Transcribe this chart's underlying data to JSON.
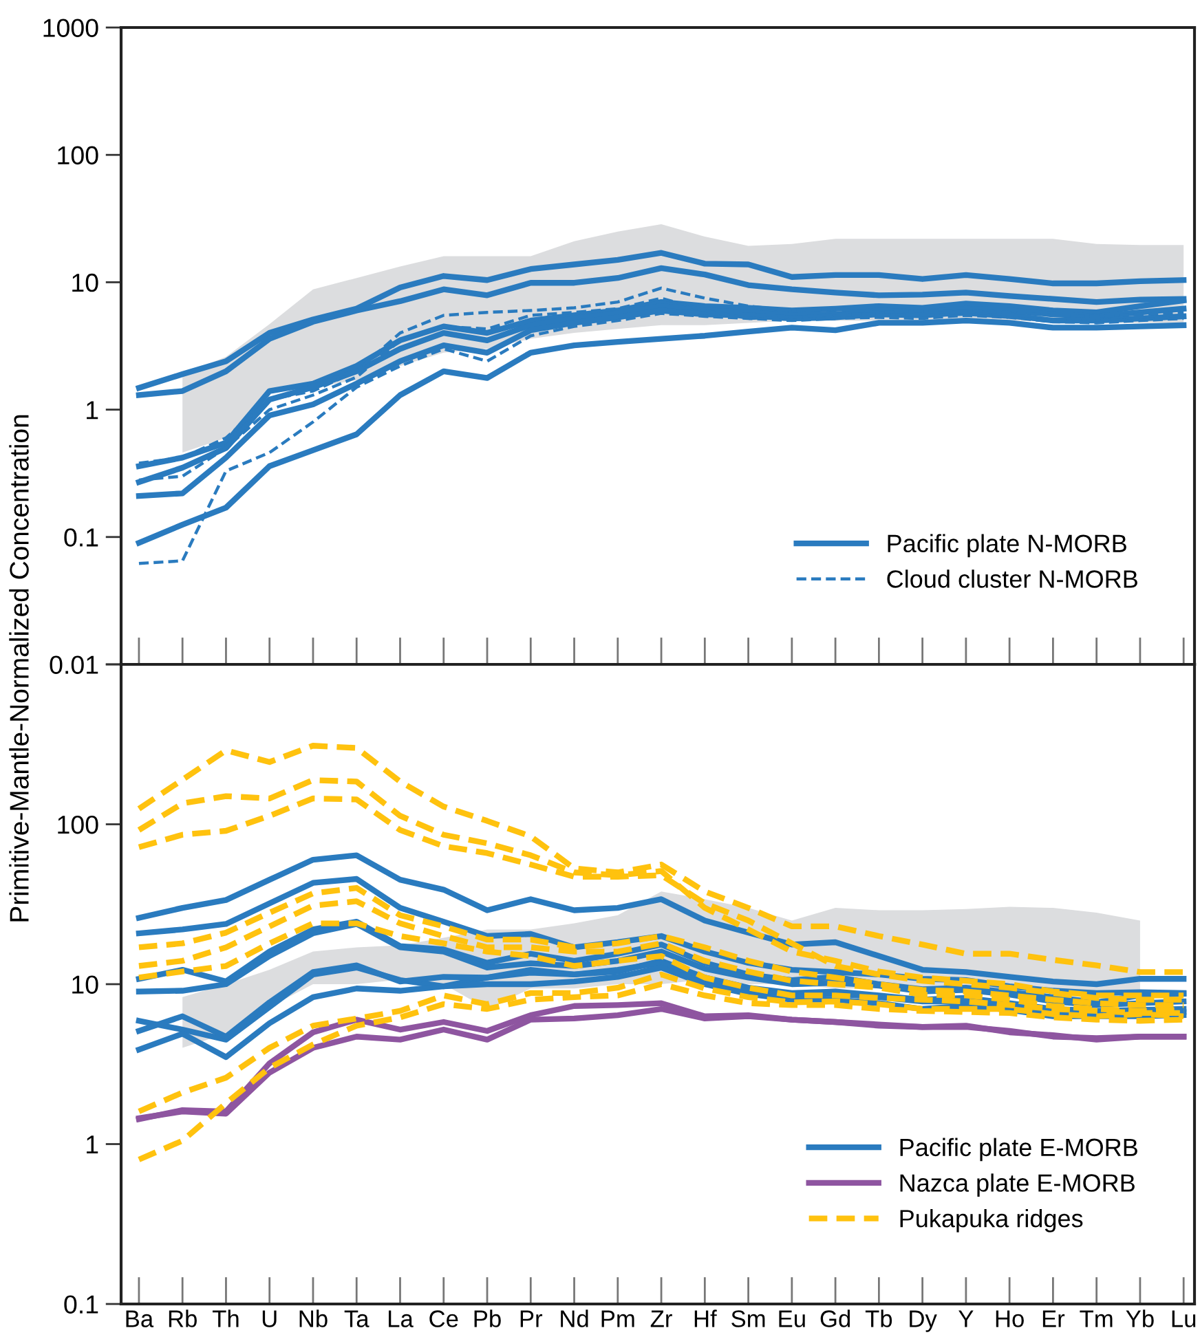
{
  "chart_data": [
    {
      "type": "line",
      "ylabel": "Primitive-Mantle-Normalized Concentration",
      "log": "y",
      "ylim": [
        0.01,
        1000
      ],
      "yticks": [
        0.01,
        0.1,
        1,
        10,
        100,
        1000
      ],
      "tick_labels": "y",
      "legend": "bottom right",
      "grid": false,
      "categories": [
        null,
        null,
        null,
        null,
        null,
        null,
        null,
        null,
        null,
        null,
        null,
        null,
        null,
        null,
        null,
        null,
        null,
        null,
        null,
        null,
        null,
        null,
        null,
        null,
        null
      ],
      "series": [
        {
          "color": "#dcdddf",
          "values": [
            null,
            null,
            null,
            null,
            null,
            null,
            null,
            null,
            null,
            null,
            null,
            null,
            null,
            null,
            null,
            null,
            null,
            null,
            null,
            null,
            null,
            null,
            null,
            null,
            null
          ],
          "lower": [
            null,
            0.46,
            0.6,
            1.36,
            1.5,
            1.7,
            2.2,
            2.8,
            3.0,
            3.6,
            4.0,
            4.3,
            4.6,
            4.6,
            4.8,
            5.0,
            5.0,
            5.0,
            5.0,
            5.0,
            5.0,
            4.9,
            4.8,
            4.8,
            4.8
          ],
          "upper": [
            null,
            1.9,
            2.6,
            4.7,
            8.8,
            10.8,
            13.3,
            16,
            16,
            16,
            21,
            25,
            28.6,
            22.8,
            19.3,
            20,
            21.9,
            21.9,
            21.9,
            21.9,
            21.9,
            21.9,
            20,
            19.6,
            19.6
          ]
        },
        {
          "name": "Pacific plate N-MORB",
          "color": "#2a7bbf",
          "line_style": "solid",
          "values": [
            1.48,
            1.9,
            2.4,
            4.0,
            5.1,
            6.2,
            9.1,
            11.2,
            10.4,
            12.7,
            13.8,
            15,
            17,
            14,
            13.8,
            11,
            11.4,
            11.4,
            10.6,
            11.4,
            10.6,
            9.8,
            9.8,
            10.2,
            10.4
          ]
        },
        {
          "color": "#2a7bbf",
          "line_style": "solid",
          "values": [
            1.3,
            1.4,
            2.0,
            3.6,
            4.9,
            6.0,
            7.1,
            8.8,
            7.9,
            9.9,
            9.9,
            10.8,
            12.9,
            11.5,
            9.5,
            8.8,
            8.3,
            7.9,
            8.0,
            8.3,
            7.8,
            7.4,
            7.0,
            7.3,
            7.4
          ]
        },
        {
          "color": "#2a7bbf",
          "line_style": "solid",
          "values": [
            0.36,
            0.42,
            0.55,
            1.4,
            1.6,
            2.2,
            3.5,
            4.5,
            4.0,
            5.0,
            5.5,
            6.0,
            7.0,
            6.5,
            6.3,
            6.0,
            6.2,
            6.5,
            6.3,
            6.8,
            6.5,
            6.0,
            5.8,
            6.5,
            7.2
          ]
        },
        {
          "color": "#2a7bbf",
          "line_style": "solid",
          "values": [
            0.27,
            0.35,
            0.5,
            1.2,
            1.5,
            2.0,
            3.0,
            4.0,
            3.5,
            4.6,
            5.2,
            5.7,
            6.5,
            6.0,
            5.8,
            5.5,
            5.6,
            6.0,
            5.8,
            6.2,
            6.0,
            5.6,
            5.4,
            5.8,
            6.2
          ]
        },
        {
          "color": "#2a7bbf",
          "line_style": "solid",
          "values": [
            0.21,
            0.22,
            0.42,
            0.9,
            1.1,
            1.6,
            2.4,
            3.2,
            2.8,
            4.2,
            4.8,
            5.3,
            6.0,
            5.6,
            5.5,
            5.2,
            5.3,
            5.6,
            5.5,
            5.8,
            5.5,
            5.0,
            5.0,
            5.2,
            5.4
          ]
        },
        {
          "color": "#2a7bbf",
          "line_style": "solid",
          "values": [
            0.09,
            0.125,
            0.17,
            0.36,
            0.48,
            0.64,
            1.3,
            2.0,
            1.77,
            2.8,
            3.2,
            3.4,
            3.6,
            3.8,
            4.1,
            4.4,
            4.2,
            4.8,
            4.8,
            5.0,
            4.8,
            4.4,
            4.4,
            4.5,
            4.6
          ]
        },
        {
          "name": "Cloud cluster N-MORB",
          "color": "#2a7bbf",
          "line_style": "dashed",
          "values": [
            0.38,
            0.42,
            0.6,
            1.2,
            1.4,
            2.0,
            4.0,
            5.5,
            5.8,
            6.0,
            6.3,
            7.0,
            9.0,
            7.5,
            6.5,
            6.0,
            6.2,
            5.8,
            6.0,
            6.0,
            5.8,
            5.5,
            5.4,
            5.6,
            5.8
          ]
        },
        {
          "color": "#2a7bbf",
          "line_style": "dashed",
          "values": [
            0.28,
            0.3,
            0.5,
            1.0,
            1.3,
            1.8,
            3.5,
            4.5,
            4.3,
            5.5,
            5.8,
            6.2,
            7.5,
            6.0,
            5.2,
            5.3,
            5.6,
            5.6,
            5.5,
            5.6,
            5.3,
            5.0,
            5.0,
            5.1,
            5.3
          ]
        },
        {
          "color": "#2a7bbf",
          "line_style": "dashed",
          "values": [
            0.062,
            0.065,
            0.33,
            0.46,
            0.8,
            1.5,
            2.2,
            3.0,
            2.4,
            3.8,
            4.5,
            5.0,
            5.7,
            5.4,
            5.2,
            5.0,
            5.2,
            5.3,
            5.2,
            5.5,
            5.3,
            4.9,
            4.8,
            5.0,
            5.2
          ]
        }
      ]
    },
    {
      "type": "line",
      "log": "y",
      "ylim": [
        0.1,
        1000
      ],
      "yticks": [
        0.1,
        1,
        10,
        100,
        {
          "value": 1000,
          "label": null
        }
      ],
      "legend": "bottom right",
      "grid": false,
      "categories": [
        "Ba",
        "Rb",
        "Th",
        "U",
        "Nb",
        "Ta",
        "La",
        "Ce",
        "Pb",
        "Pr",
        "Nd",
        "Pm",
        "Zr",
        "Hf",
        "Sm",
        "Eu",
        "Gd",
        "Tb",
        "Dy",
        "Y",
        "Ho",
        "Er",
        "Tm",
        "Yb",
        "Lu"
      ],
      "series": [
        {
          "color": "#dcdddf",
          "values": [
            null,
            null,
            null,
            null,
            null,
            null,
            null,
            null,
            null,
            null,
            null,
            null,
            null,
            null,
            null,
            null,
            null,
            null,
            null,
            null,
            null,
            null,
            null,
            null,
            null
          ],
          "lower": [
            null,
            4.0,
            4.9,
            7.2,
            10,
            10,
            10.7,
            10,
            7.0,
            9.4,
            9.4,
            10,
            10,
            10.7,
            10,
            10,
            9.4,
            9.4,
            9.4,
            9.7,
            9.4,
            9.1,
            9.1,
            9.1,
            null
          ],
          "upper": [
            null,
            8.3,
            10,
            12.3,
            16,
            17,
            17.5,
            19.5,
            22,
            22,
            24,
            27,
            38,
            34,
            30,
            25,
            30,
            29,
            29,
            29.5,
            30.5,
            30,
            28,
            25,
            null
          ]
        },
        {
          "name": "Pacific plate E-MORB",
          "color": "#2a7bbf",
          "line_style": "solid",
          "values": [
            26,
            30,
            33.6,
            45,
            60,
            64,
            45,
            39,
            29,
            34,
            29,
            30,
            34,
            25,
            21,
            17.7,
            18.3,
            15,
            12.3,
            11.9,
            11.1,
            10.4,
            10,
            10.8,
            10.8
          ]
        },
        {
          "color": "#2a7bbf",
          "line_style": "solid",
          "values": [
            20.8,
            22,
            23.8,
            32,
            43,
            45.5,
            30,
            24.6,
            20,
            20.6,
            17,
            18.3,
            20,
            16,
            13.6,
            12.3,
            11.9,
            11.5,
            10.8,
            10.6,
            9.7,
            9.1,
            8.8,
            8.9,
            8.8
          ]
        },
        {
          "color": "#2a7bbf",
          "line_style": "solid",
          "values": [
            10.8,
            12.3,
            10.4,
            16,
            22,
            24.6,
            17.3,
            16.5,
            13.6,
            15.5,
            14,
            15.5,
            17.7,
            13.6,
            11.5,
            10.6,
            11.1,
            10,
            9.3,
            9.5,
            8.9,
            8.3,
            7.7,
            8.5,
            8.7
          ]
        },
        {
          "color": "#2a7bbf",
          "line_style": "solid",
          "values": [
            9.0,
            9.1,
            10,
            15,
            20.8,
            23.8,
            17,
            16,
            12.7,
            13.5,
            13,
            14,
            16,
            12.5,
            11,
            10,
            10.2,
            9.8,
            9.0,
            9.2,
            8.6,
            7.8,
            7.4,
            7.6,
            7.8
          ]
        },
        {
          "color": "#2a7bbf",
          "line_style": "solid",
          "values": [
            5.9,
            5.2,
            4.5,
            7.2,
            11.5,
            12.7,
            10.6,
            9.7,
            11,
            11.8,
            11.5,
            12,
            14,
            11,
            9.5,
            8.8,
            9.0,
            8.5,
            8.0,
            8.2,
            7.6,
            7.0,
            6.8,
            6.9,
            7.0
          ]
        },
        {
          "color": "#2a7bbf",
          "line_style": "solid",
          "values": [
            5.1,
            6.3,
            4.7,
            7.7,
            11.9,
            13.1,
            10.4,
            11.1,
            11,
            12.3,
            11.5,
            12.3,
            13.6,
            10.5,
            9.0,
            8.5,
            8.7,
            8.3,
            7.8,
            7.8,
            7.3,
            6.6,
            6.6,
            6.6,
            6.7
          ]
        },
        {
          "color": "#2a7bbf",
          "line_style": "solid",
          "values": [
            3.9,
            4.9,
            3.5,
            5.7,
            8.3,
            9.4,
            9.1,
            9.7,
            10,
            10,
            10.4,
            11.1,
            12.7,
            10,
            8.7,
            8.0,
            8.0,
            7.6,
            7.0,
            7.3,
            6.9,
            6.3,
            6.3,
            6.3,
            6.4
          ]
        },
        {
          "name": "Nazca plate E-MORB",
          "color": "#8e55a0",
          "line_style": "solid",
          "values": [
            1.43,
            1.63,
            1.6,
            3.2,
            5.0,
            6.0,
            5.2,
            5.8,
            5.1,
            6.4,
            7.3,
            7.4,
            7.6,
            6.3,
            6.4,
            6.0,
            5.8,
            5.5,
            5.4,
            5.5,
            5.0,
            4.8,
            4.5,
            4.7,
            4.7
          ]
        },
        {
          "color": "#8e55a0",
          "line_style": "solid",
          "values": [
            1.45,
            1.6,
            1.55,
            2.8,
            4.0,
            4.7,
            4.5,
            5.2,
            4.5,
            6.0,
            6.1,
            6.4,
            7.0,
            6.1,
            6.3,
            6.0,
            5.8,
            5.6,
            5.4,
            5.4,
            5.1,
            4.7,
            4.6,
            4.7,
            4.7
          ]
        },
        {
          "name": "Pukapuka ridges",
          "color": "#ffc20e",
          "line_style": "dashed",
          "values": [
            125,
            190,
            290,
            245,
            310,
            300,
            185,
            129,
            105,
            84,
            53,
            50,
            56,
            38,
            30,
            23,
            23,
            20,
            17.7,
            15.5,
            15.5,
            14.2,
            13.1,
            11.9,
            11.9
          ]
        },
        {
          "color": "#ffc20e",
          "line_style": "dashed",
          "values": [
            92,
            135,
            150,
            145,
            189,
            185,
            113,
            86,
            76,
            64,
            50,
            48,
            51,
            30,
            22,
            16,
            14,
            12,
            11,
            10.5,
            10,
            9.0,
            8.5,
            8.5,
            8.5
          ]
        },
        {
          "color": "#ffc20e",
          "line_style": "dashed",
          "values": [
            72,
            86,
            91,
            113,
            145,
            143,
            92,
            73,
            66,
            56,
            47,
            47,
            48,
            32,
            25,
            18,
            13,
            11.5,
            10.5,
            10,
            9.5,
            8.8,
            8.2,
            8.0,
            8.0
          ]
        },
        {
          "color": "#ffc20e",
          "line_style": "dashed",
          "values": [
            17,
            18,
            21,
            28,
            37,
            40,
            27,
            23,
            19,
            19,
            17,
            18,
            20,
            17,
            14,
            12,
            11,
            10,
            9.2,
            9.0,
            8.5,
            8.0,
            7.6,
            7.4,
            7.4
          ]
        },
        {
          "color": "#ffc20e",
          "line_style": "dashed",
          "values": [
            13,
            14,
            17,
            23,
            31,
            33,
            24,
            20,
            17,
            17,
            16,
            16,
            18,
            14,
            12,
            10.5,
            10,
            9.5,
            8.6,
            8.5,
            8.0,
            7.3,
            7.0,
            6.8,
            6.9
          ]
        },
        {
          "color": "#ffc20e",
          "line_style": "dashed",
          "values": [
            11,
            12,
            13,
            18,
            24,
            24,
            20,
            18,
            16,
            15,
            13,
            14,
            15,
            11,
            9.5,
            8.5,
            8.5,
            8.2,
            8.0,
            7.8,
            7.4,
            7.0,
            6.8,
            6.6,
            6.6
          ]
        },
        {
          "color": "#ffc20e",
          "line_style": "dashed",
          "values": [
            1.6,
            2.1,
            2.6,
            4.0,
            5.5,
            6.1,
            6.8,
            8.5,
            7.5,
            8.8,
            8.8,
            9.5,
            11.5,
            9.4,
            8.3,
            7.7,
            7.8,
            7.5,
            7.0,
            7.0,
            7.0,
            6.5,
            6.3,
            6.5,
            6.3
          ]
        },
        {
          "color": "#ffc20e",
          "line_style": "dashed",
          "values": [
            0.8,
            1.05,
            1.8,
            3.0,
            4.2,
            5.5,
            6.2,
            7.5,
            7.0,
            8.0,
            8.3,
            8.5,
            10,
            8.5,
            7.6,
            7.4,
            7.4,
            7.0,
            6.8,
            6.7,
            6.6,
            6.2,
            6.0,
            5.9,
            6.0
          ]
        }
      ]
    }
  ]
}
